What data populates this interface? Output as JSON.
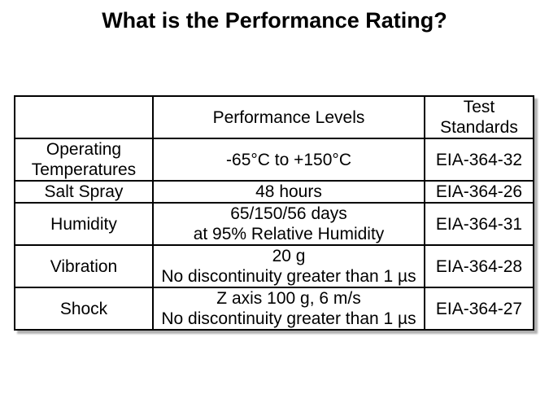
{
  "slide": {
    "title": "What is the Performance Rating?",
    "background_color": "#ffffff",
    "text_color": "#000000"
  },
  "table": {
    "border_color": "#000000",
    "shadow_color": "#b0b0b0",
    "header": {
      "category": "",
      "performance": "Performance Levels",
      "standards": "Test\nStandards"
    },
    "rows": [
      {
        "category": "Operating\nTemperatures",
        "performance": "-65°C to +150°C",
        "standard": "EIA-364-32"
      },
      {
        "category": "Salt Spray",
        "performance": "48 hours",
        "standard": "EIA-364-26"
      },
      {
        "category": "Humidity",
        "performance": "65/150/56 days\nat 95% Relative Humidity",
        "standard": "EIA-364-31"
      },
      {
        "category": "Vibration",
        "performance": "20 g\nNo discontinuity greater than 1 µs",
        "standard": "EIA-364-28"
      },
      {
        "category": "Shock",
        "performance": "Z axis 100 g, 6 m/s\nNo discontinuity greater than 1 µs",
        "standard": "EIA-364-27"
      }
    ]
  }
}
